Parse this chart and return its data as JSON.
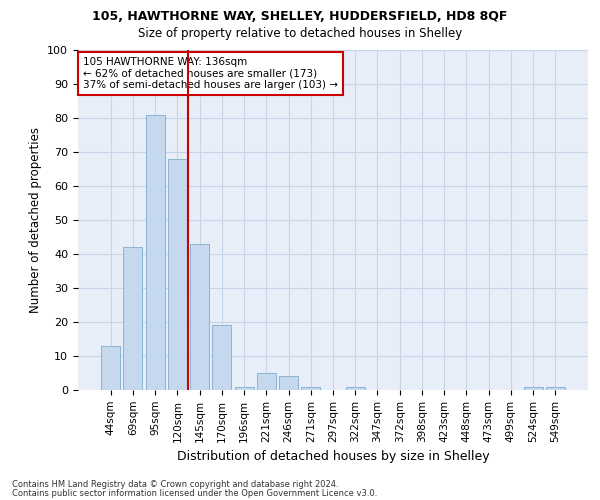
{
  "title1": "105, HAWTHORNE WAY, SHELLEY, HUDDERSFIELD, HD8 8QF",
  "title2": "Size of property relative to detached houses in Shelley",
  "xlabel": "Distribution of detached houses by size in Shelley",
  "ylabel": "Number of detached properties",
  "categories": [
    "44sqm",
    "69sqm",
    "95sqm",
    "120sqm",
    "145sqm",
    "170sqm",
    "196sqm",
    "221sqm",
    "246sqm",
    "271sqm",
    "297sqm",
    "322sqm",
    "347sqm",
    "372sqm",
    "398sqm",
    "423sqm",
    "448sqm",
    "473sqm",
    "499sqm",
    "524sqm",
    "549sqm"
  ],
  "values": [
    13,
    42,
    81,
    68,
    43,
    19,
    1,
    5,
    4,
    1,
    0,
    1,
    0,
    0,
    0,
    0,
    0,
    0,
    0,
    1,
    1
  ],
  "bar_color": "#c5d8ee",
  "bar_edge_color": "#8ab4d4",
  "grid_color": "#c8d4e8",
  "background_color": "#e8eef8",
  "vline_x": 3.5,
  "vline_color": "#cc0000",
  "annotation_title": "105 HAWTHORNE WAY: 136sqm",
  "annotation_line1": "← 62% of detached houses are smaller (173)",
  "annotation_line2": "37% of semi-detached houses are larger (103) →",
  "box_color": "#cc0000",
  "ylim": [
    0,
    100
  ],
  "footnote1": "Contains HM Land Registry data © Crown copyright and database right 2024.",
  "footnote2": "Contains public sector information licensed under the Open Government Licence v3.0."
}
